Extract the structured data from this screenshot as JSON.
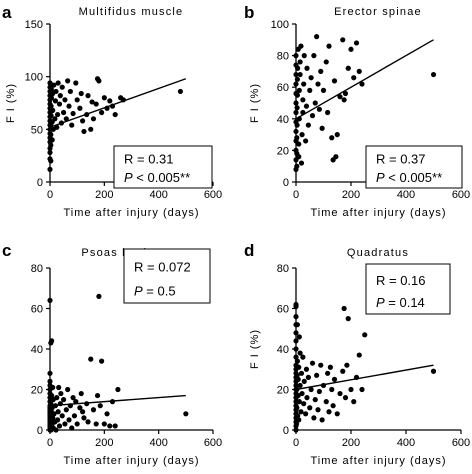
{
  "chart_data": [
    {
      "type": "scatter",
      "panel": "a",
      "title": "Multifidus muscle",
      "xlabel": "Time after injury (days)",
      "ylabel": "F I (%)",
      "xlim": [
        0,
        600
      ],
      "ylim": [
        0,
        150
      ],
      "xticks": [
        0,
        200,
        400,
        600
      ],
      "yticks": [
        0,
        50,
        100,
        150
      ],
      "stats": {
        "r_label": "R = 0.31",
        "p_label_italic": "P",
        "p_label_rest": " < 0.005**"
      },
      "legend_placement": "bottom-right",
      "fit_line": {
        "x": [
          0,
          500
        ],
        "y": [
          52,
          98
        ]
      },
      "points": [
        [
          0,
          12
        ],
        [
          0,
          22
        ],
        [
          0,
          28
        ],
        [
          0,
          32
        ],
        [
          0,
          38
        ],
        [
          0,
          42
        ],
        [
          0,
          46
        ],
        [
          0,
          50
        ],
        [
          0,
          54
        ],
        [
          0,
          58
        ],
        [
          0,
          62
        ],
        [
          0,
          66
        ],
        [
          0,
          70
        ],
        [
          0,
          74
        ],
        [
          0,
          78
        ],
        [
          0,
          82
        ],
        [
          0,
          86
        ],
        [
          0,
          90
        ],
        [
          0,
          94
        ],
        [
          3,
          20
        ],
        [
          3,
          35
        ],
        [
          3,
          45
        ],
        [
          3,
          55
        ],
        [
          4,
          63
        ],
        [
          4,
          72
        ],
        [
          5,
          80
        ],
        [
          5,
          88
        ],
        [
          8,
          40
        ],
        [
          8,
          57
        ],
        [
          10,
          68
        ],
        [
          10,
          84
        ],
        [
          12,
          50
        ],
        [
          14,
          92
        ],
        [
          18,
          60
        ],
        [
          20,
          77
        ],
        [
          22,
          86
        ],
        [
          25,
          52
        ],
        [
          28,
          64
        ],
        [
          30,
          94
        ],
        [
          35,
          74
        ],
        [
          38,
          82
        ],
        [
          42,
          56
        ],
        [
          45,
          90
        ],
        [
          50,
          66
        ],
        [
          55,
          78
        ],
        [
          60,
          60
        ],
        [
          65,
          96
        ],
        [
          70,
          72
        ],
        [
          75,
          86
        ],
        [
          80,
          54
        ],
        [
          85,
          65
        ],
        [
          95,
          94
        ],
        [
          100,
          78
        ],
        [
          110,
          70
        ],
        [
          115,
          84
        ],
        [
          120,
          58
        ],
        [
          125,
          48
        ],
        [
          135,
          64
        ],
        [
          140,
          82
        ],
        [
          150,
          50
        ],
        [
          155,
          76
        ],
        [
          160,
          60
        ],
        [
          170,
          74
        ],
        [
          175,
          98
        ],
        [
          180,
          96
        ],
        [
          190,
          66
        ],
        [
          200,
          80
        ],
        [
          210,
          70
        ],
        [
          220,
          77
        ],
        [
          230,
          72
        ],
        [
          240,
          64
        ],
        [
          260,
          80
        ],
        [
          270,
          78
        ],
        [
          480,
          86
        ]
      ]
    },
    {
      "type": "scatter",
      "panel": "b",
      "title": "Erector spinae",
      "xlabel": "Time after injury (days)",
      "ylabel": "F I (%)",
      "xlim": [
        0,
        600
      ],
      "ylim": [
        0,
        100
      ],
      "xticks": [
        0,
        200,
        400,
        600
      ],
      "yticks": [
        0,
        20,
        40,
        60,
        80,
        100
      ],
      "stats": {
        "r_label": "R = 0.37",
        "p_label_italic": "P",
        "p_label_rest": " < 0.005**"
      },
      "legend_placement": "bottom-right",
      "fit_line": {
        "x": [
          0,
          500
        ],
        "y": [
          40,
          90
        ]
      },
      "points": [
        [
          0,
          8
        ],
        [
          0,
          14
        ],
        [
          0,
          20
        ],
        [
          0,
          26
        ],
        [
          0,
          32
        ],
        [
          0,
          38
        ],
        [
          0,
          44
        ],
        [
          0,
          50
        ],
        [
          0,
          56
        ],
        [
          0,
          62
        ],
        [
          0,
          68
        ],
        [
          0,
          74
        ],
        [
          0,
          80
        ],
        [
          3,
          10
        ],
        [
          3,
          18
        ],
        [
          3,
          28
        ],
        [
          4,
          36
        ],
        [
          4,
          47
        ],
        [
          5,
          55
        ],
        [
          5,
          65
        ],
        [
          6,
          72
        ],
        [
          8,
          84
        ],
        [
          10,
          16
        ],
        [
          10,
          24
        ],
        [
          12,
          40
        ],
        [
          12,
          58
        ],
        [
          15,
          68
        ],
        [
          15,
          76
        ],
        [
          18,
          86
        ],
        [
          20,
          12
        ],
        [
          22,
          30
        ],
        [
          25,
          44
        ],
        [
          25,
          52
        ],
        [
          28,
          62
        ],
        [
          30,
          80
        ],
        [
          35,
          26
        ],
        [
          38,
          48
        ],
        [
          40,
          72
        ],
        [
          45,
          36
        ],
        [
          50,
          58
        ],
        [
          55,
          66
        ],
        [
          60,
          42
        ],
        [
          65,
          80
        ],
        [
          70,
          50
        ],
        [
          75,
          92
        ],
        [
          80,
          62
        ],
        [
          85,
          46
        ],
        [
          90,
          70
        ],
        [
          95,
          34
        ],
        [
          100,
          58
        ],
        [
          110,
          76
        ],
        [
          115,
          44
        ],
        [
          120,
          86
        ],
        [
          130,
          28
        ],
        [
          135,
          14
        ],
        [
          140,
          64
        ],
        [
          145,
          16
        ],
        [
          150,
          30
        ],
        [
          160,
          54
        ],
        [
          170,
          90
        ],
        [
          175,
          52
        ],
        [
          180,
          56
        ],
        [
          190,
          72
        ],
        [
          200,
          84
        ],
        [
          210,
          66
        ],
        [
          220,
          88
        ],
        [
          230,
          70
        ],
        [
          240,
          62
        ],
        [
          500,
          68
        ]
      ]
    },
    {
      "type": "scatter",
      "panel": "c",
      "title": "Psoas lumborum",
      "xlabel": "Time after injury (days)",
      "ylabel": "",
      "xlim": [
        0,
        600
      ],
      "ylim": [
        0,
        80
      ],
      "xticks": [
        0,
        200,
        400,
        600
      ],
      "yticks": [
        0,
        20,
        40,
        60,
        80
      ],
      "stats": {
        "r_label": "R = 0.072",
        "p_label_italic": "P",
        "p_label_rest": " = 0.5"
      },
      "legend_placement": "top-right",
      "fit_line": {
        "x": [
          0,
          500
        ],
        "y": [
          12,
          17
        ]
      },
      "points": [
        [
          0,
          0
        ],
        [
          0,
          1
        ],
        [
          0,
          2
        ],
        [
          0,
          3
        ],
        [
          0,
          4
        ],
        [
          0,
          5
        ],
        [
          0,
          6
        ],
        [
          0,
          7
        ],
        [
          0,
          8
        ],
        [
          0,
          9
        ],
        [
          0,
          10
        ],
        [
          0,
          11
        ],
        [
          0,
          12
        ],
        [
          0,
          14
        ],
        [
          0,
          16
        ],
        [
          0,
          18
        ],
        [
          0,
          20
        ],
        [
          0,
          22
        ],
        [
          0,
          24
        ],
        [
          0,
          28
        ],
        [
          0,
          64
        ],
        [
          2,
          2
        ],
        [
          2,
          7
        ],
        [
          3,
          13
        ],
        [
          3,
          43
        ],
        [
          4,
          0
        ],
        [
          4,
          5
        ],
        [
          5,
          9
        ],
        [
          6,
          17
        ],
        [
          6,
          44
        ],
        [
          8,
          3
        ],
        [
          8,
          11
        ],
        [
          10,
          6
        ],
        [
          10,
          21
        ],
        [
          12,
          1
        ],
        [
          12,
          15
        ],
        [
          15,
          8
        ],
        [
          18,
          4
        ],
        [
          20,
          12
        ],
        [
          22,
          0
        ],
        [
          25,
          16
        ],
        [
          28,
          5
        ],
        [
          30,
          9
        ],
        [
          32,
          21
        ],
        [
          35,
          2
        ],
        [
          38,
          13
        ],
        [
          40,
          18
        ],
        [
          45,
          7
        ],
        [
          50,
          15
        ],
        [
          55,
          3
        ],
        [
          60,
          10
        ],
        [
          65,
          20
        ],
        [
          70,
          5
        ],
        [
          75,
          12
        ],
        [
          80,
          1
        ],
        [
          85,
          16
        ],
        [
          90,
          7
        ],
        [
          95,
          14
        ],
        [
          100,
          3
        ],
        [
          110,
          11
        ],
        [
          115,
          18
        ],
        [
          120,
          9
        ],
        [
          125,
          6
        ],
        [
          135,
          13
        ],
        [
          140,
          4
        ],
        [
          150,
          35
        ],
        [
          160,
          10
        ],
        [
          170,
          3
        ],
        [
          175,
          17
        ],
        [
          180,
          66
        ],
        [
          185,
          12
        ],
        [
          190,
          34
        ],
        [
          200,
          3
        ],
        [
          210,
          8
        ],
        [
          220,
          2
        ],
        [
          230,
          14
        ],
        [
          240,
          2
        ],
        [
          250,
          20
        ],
        [
          500,
          8
        ]
      ]
    },
    {
      "type": "scatter",
      "panel": "d",
      "title": "Quadratus",
      "xlabel": "Time after injury (days)",
      "ylabel": "F I (%)",
      "xlim": [
        0,
        600
      ],
      "ylim": [
        0,
        80
      ],
      "xticks": [
        0,
        200,
        400,
        600
      ],
      "yticks": [
        0,
        20,
        40,
        60,
        80
      ],
      "stats": {
        "r_label": "R = 0.16",
        "p_label_italic": "P",
        "p_label_rest": " = 0.14"
      },
      "legend_placement": "top-right",
      "fit_line": {
        "x": [
          0,
          500
        ],
        "y": [
          20,
          32
        ]
      },
      "points": [
        [
          0,
          0
        ],
        [
          0,
          2
        ],
        [
          0,
          4
        ],
        [
          0,
          6
        ],
        [
          0,
          8
        ],
        [
          0,
          10
        ],
        [
          0,
          12
        ],
        [
          0,
          14
        ],
        [
          0,
          16
        ],
        [
          0,
          18
        ],
        [
          0,
          20
        ],
        [
          0,
          22
        ],
        [
          0,
          24
        ],
        [
          0,
          26
        ],
        [
          0,
          28
        ],
        [
          0,
          30
        ],
        [
          0,
          32
        ],
        [
          0,
          36
        ],
        [
          0,
          40
        ],
        [
          0,
          44
        ],
        [
          0,
          48
        ],
        [
          0,
          52
        ],
        [
          0,
          56
        ],
        [
          0,
          61
        ],
        [
          0,
          62
        ],
        [
          2,
          3
        ],
        [
          3,
          11
        ],
        [
          3,
          20
        ],
        [
          4,
          27
        ],
        [
          5,
          34
        ],
        [
          5,
          52
        ],
        [
          6,
          7
        ],
        [
          8,
          17
        ],
        [
          8,
          25
        ],
        [
          10,
          5
        ],
        [
          10,
          31
        ],
        [
          12,
          14
        ],
        [
          12,
          46
        ],
        [
          15,
          22
        ],
        [
          15,
          38
        ],
        [
          18,
          9
        ],
        [
          20,
          28
        ],
        [
          22,
          18
        ],
        [
          25,
          36
        ],
        [
          28,
          13
        ],
        [
          30,
          24
        ],
        [
          35,
          8
        ],
        [
          38,
          30
        ],
        [
          40,
          16
        ],
        [
          45,
          26
        ],
        [
          50,
          11
        ],
        [
          55,
          20
        ],
        [
          60,
          33
        ],
        [
          65,
          6
        ],
        [
          70,
          15
        ],
        [
          75,
          27
        ],
        [
          80,
          10
        ],
        [
          85,
          19
        ],
        [
          90,
          32
        ],
        [
          95,
          5
        ],
        [
          100,
          22
        ],
        [
          110,
          14
        ],
        [
          115,
          28
        ],
        [
          120,
          9
        ],
        [
          125,
          31
        ],
        [
          130,
          20
        ],
        [
          135,
          12
        ],
        [
          140,
          25
        ],
        [
          150,
          8
        ],
        [
          160,
          18
        ],
        [
          170,
          29
        ],
        [
          175,
          60
        ],
        [
          180,
          16
        ],
        [
          185,
          32
        ],
        [
          190,
          55
        ],
        [
          200,
          20
        ],
        [
          210,
          14
        ],
        [
          220,
          26
        ],
        [
          230,
          37
        ],
        [
          240,
          20
        ],
        [
          250,
          47
        ],
        [
          500,
          29
        ]
      ]
    }
  ]
}
